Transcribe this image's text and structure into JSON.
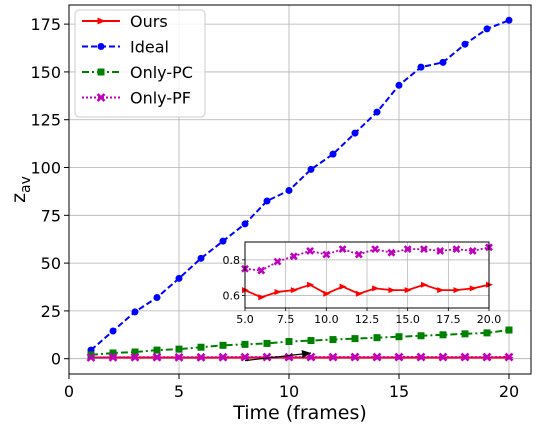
{
  "chart_data": [
    {
      "type": "line",
      "xlabel": "Time (frames)",
      "ylabel_main": "z",
      "ylabel_sub": "av",
      "xlim": [
        0,
        21
      ],
      "ylim": [
        -8,
        185
      ],
      "xticks": [
        0,
        5,
        10,
        15,
        20
      ],
      "yticks": [
        0,
        25,
        50,
        75,
        100,
        125,
        150,
        175
      ],
      "grid": true,
      "legend": "top-left",
      "x": [
        1,
        2,
        3,
        4,
        5,
        6,
        7,
        8,
        9,
        10,
        11,
        12,
        13,
        14,
        15,
        16,
        17,
        18,
        19,
        20
      ],
      "series": [
        {
          "name": "Ours",
          "color": "#ff0000",
          "marker": "triangle-right",
          "dash": "solid",
          "values": [
            0.6,
            0.62,
            0.63,
            0.66,
            0.63,
            0.59,
            0.62,
            0.63,
            0.66,
            0.61,
            0.65,
            0.61,
            0.64,
            0.63,
            0.63,
            0.66,
            0.63,
            0.63,
            0.64,
            0.66
          ]
        },
        {
          "name": "Ideal",
          "color": "#0000ff",
          "marker": "circle",
          "dash": "dashed",
          "values": [
            4.5,
            14.5,
            24.5,
            32,
            42,
            52.5,
            61.5,
            70.5,
            82.5,
            88,
            99,
            107,
            118,
            129,
            143,
            152.5,
            155,
            164.5,
            172.5,
            177
          ]
        },
        {
          "name": "Only-PC",
          "color": "#008000",
          "marker": "square",
          "dash": "dashdot",
          "values": [
            2,
            3,
            3.5,
            4.5,
            5,
            6,
            7,
            7.5,
            8,
            9,
            9.5,
            10,
            10.5,
            11,
            11.5,
            12,
            12.5,
            13,
            13.5,
            15
          ]
        },
        {
          "name": "Only-PF",
          "color": "#bf00bf",
          "marker": "x",
          "dash": "dotted",
          "values": [
            0.63,
            0.72,
            0.76,
            0.79,
            0.75,
            0.74,
            0.79,
            0.82,
            0.85,
            0.83,
            0.86,
            0.83,
            0.86,
            0.84,
            0.86,
            0.86,
            0.85,
            0.86,
            0.85,
            0.87
          ]
        }
      ]
    },
    {
      "type": "line",
      "role": "inset",
      "xlim": [
        5,
        20
      ],
      "ylim": [
        0.53,
        0.9
      ],
      "xticks": [
        5.0,
        7.5,
        10.0,
        12.5,
        15.0,
        17.5,
        20.0
      ],
      "xtick_labels": [
        "5.0",
        "7.5",
        "10.0",
        "12.5",
        "15.0",
        "17.5",
        "20.0"
      ],
      "yticks": [
        0.6,
        0.8
      ],
      "ytick_labels": [
        "0.6",
        "0.8"
      ],
      "grid": true,
      "series_shown": [
        "Ours",
        "Only-PF"
      ],
      "arrow": {
        "from_x": 11,
        "from_y": 3,
        "to_x": 8,
        "to_y": -1
      }
    }
  ]
}
